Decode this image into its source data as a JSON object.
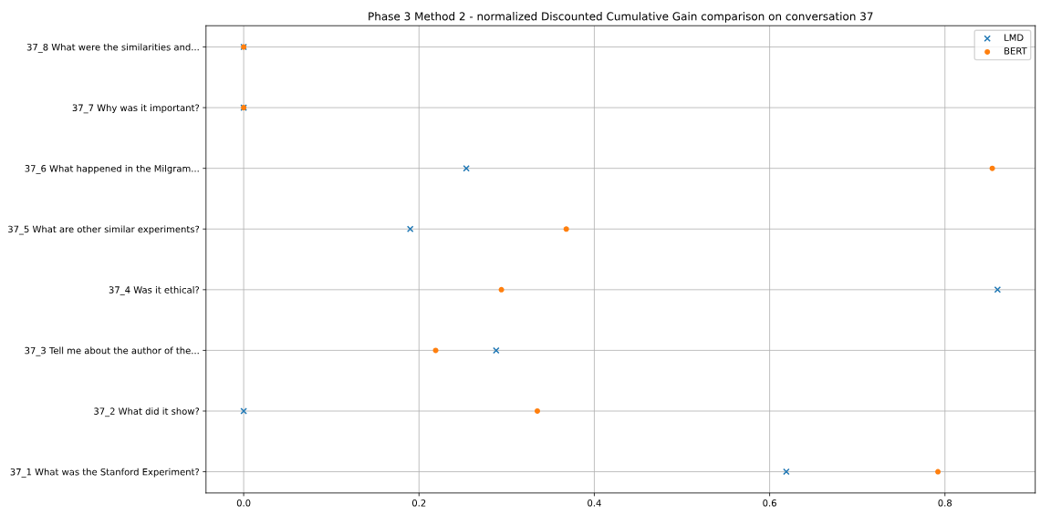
{
  "chart_data": {
    "type": "scatter",
    "title": "Phase 3 Method 2 - normalized Discounted Cumulative Gain comparison on conversation 37",
    "orientation": "horizontal",
    "categories": [
      "37_8 What were the similarities and...",
      "37_7 Why was it important?",
      "37_6 What happened in the Milgram...",
      "37_5 What are other similar experiments?",
      "37_4 Was it ethical?",
      "37_3 Tell me about the author of the...",
      "37_2 What did it show?",
      "37_1 What was the Stanford Experiment?"
    ],
    "series": [
      {
        "name": "LMD",
        "color": "#1f77b4",
        "marker": "cross",
        "values": [
          0,
          0,
          0.254,
          0.19,
          0.86,
          0.288,
          0,
          0.619
        ]
      },
      {
        "name": "BERT",
        "color": "#ff7f0e",
        "marker": "circle",
        "values": [
          0,
          0,
          0.854,
          0.368,
          0.294,
          0.219,
          0.335,
          0.792
        ]
      }
    ],
    "xlim": [
      -0.043,
      0.903
    ],
    "xticks": [
      {
        "value": 0,
        "label": "0.0"
      },
      0.2,
      0.4,
      0.6,
      0.8
    ],
    "grid": true,
    "legend": "top right"
  }
}
